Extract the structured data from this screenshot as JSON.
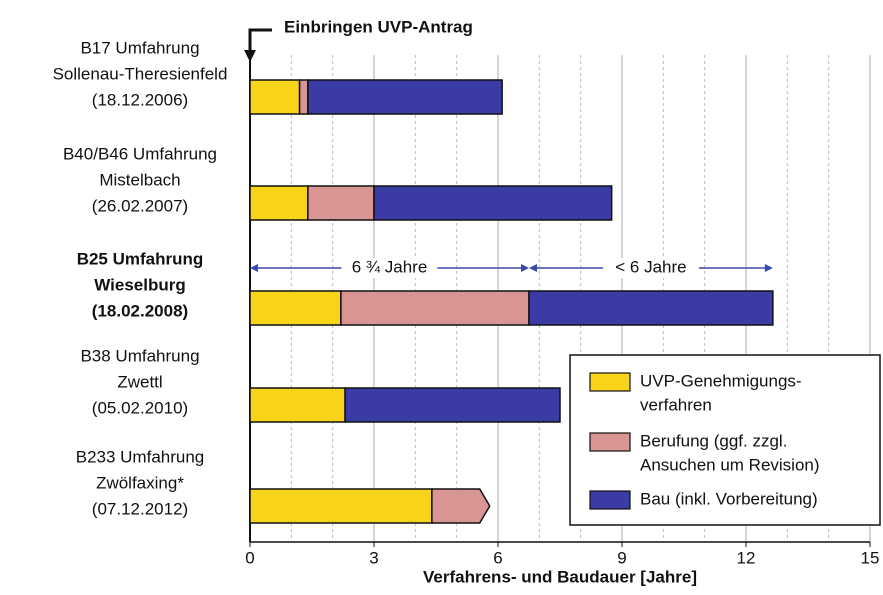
{
  "chart_data": {
    "type": "stacked-barh",
    "annotation": "Einbringen UVP-Antrag",
    "xlabel": "Verfahrens- und Baudauer [Jahre]",
    "categories": [
      [
        "B17 Umfahrung",
        "Sollenau-Theresienfeld",
        "(18.12.2006)"
      ],
      [
        "B40/B46 Umfahrung",
        "Mistelbach",
        "(26.02.2007)"
      ],
      [
        "B25 Umfahrung",
        "Wieselburg",
        "(18.02.2008)"
      ],
      [
        "B38 Umfahrung",
        "Zwettl",
        "(05.02.2010)"
      ],
      [
        "B233 Umfahrung",
        "Zwölfaxing*",
        "(07.12.2012)"
      ]
    ],
    "label_colors": [
      "#111111",
      "#111111",
      "#4b50a8",
      "#111111",
      "#111111"
    ],
    "open_ended": [
      false,
      false,
      false,
      false,
      true
    ],
    "series": [
      {
        "name": [
          "UVP-Genehmigungs-",
          "verfahren"
        ],
        "color": "#f8d31a",
        "values": [
          1.2,
          1.4,
          2.2,
          2.3,
          4.4
        ]
      },
      {
        "name": [
          "Berufung (ggf. zzgl.",
          "Ansuchen um Revision)"
        ],
        "color": "#d99494",
        "values": [
          0.2,
          1.6,
          4.55,
          0,
          1.4
        ]
      },
      {
        "name": [
          "Bau (inkl. Vorbereitung)"
        ],
        "color": "#3b3ba6",
        "values": [
          4.7,
          5.75,
          5.9,
          5.2,
          null
        ]
      }
    ],
    "spans": [
      {
        "label": "6 ¾ Jahre",
        "from": 0,
        "to": 6.75
      },
      {
        "label": "< 6 Jahre",
        "from": 6.75,
        "to": 12.65
      }
    ],
    "xlim": [
      0,
      15
    ],
    "xticks": [
      0,
      3,
      6,
      9,
      12,
      15
    ],
    "xminor": [
      1,
      2,
      4,
      5,
      7,
      8,
      10,
      11,
      13,
      14
    ],
    "grid": true,
    "legend": "lower right"
  }
}
